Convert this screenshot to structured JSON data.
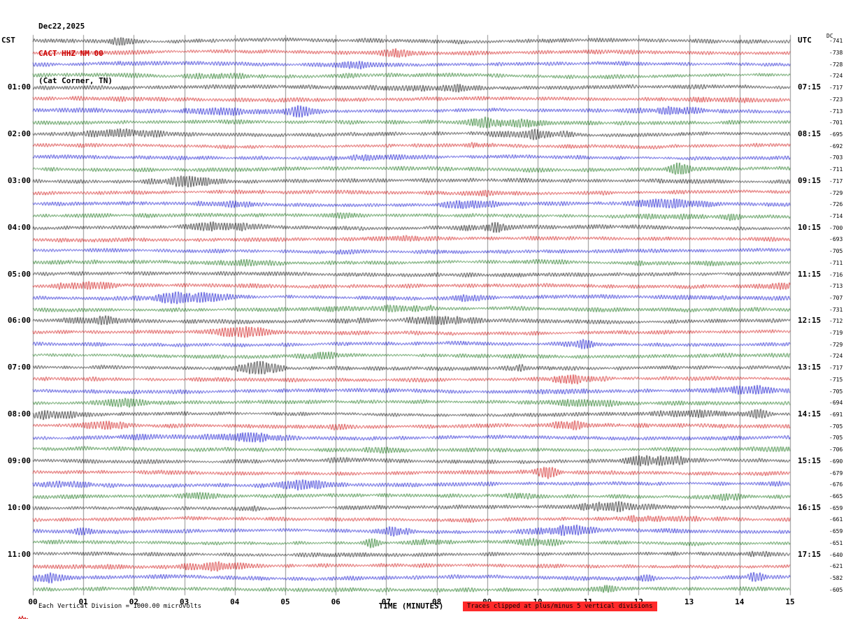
{
  "header": {
    "date": "Dec22,2025",
    "station": "CACT HHZ NM 00",
    "location": "(Cat Corner, TN)"
  },
  "axes": {
    "left_tz": "CST",
    "right_tz": "UTC",
    "dc_header": "DC",
    "x_title": "TIME (MINUTES)",
    "x_ticks": [
      "00",
      "01",
      "02",
      "03",
      "04",
      "05",
      "06",
      "07",
      "08",
      "09",
      "10",
      "11",
      "12",
      "13",
      "14",
      "15"
    ]
  },
  "footer": {
    "left": "Each Vertical Division = 1000.00 microvolts",
    "right": "Traces clipped at plus/minus 5 vertical divisions"
  },
  "chart_data": {
    "type": "line",
    "subtype": "helicorder-seismogram",
    "title": "CACT HHZ NM 00 (Cat Corner, TN) Dec22,2025",
    "xlabel": "TIME (MINUTES)",
    "x_range_minutes": [
      0,
      15
    ],
    "minutes_per_row": 15,
    "rows_count": 48,
    "grid": true,
    "trace_colors": [
      "#000000",
      "#cc0000",
      "#0000cc",
      "#006600"
    ],
    "clip_note": "Traces clipped at plus/minus 5 vertical divisions",
    "vertical_division_microvolts": 1000.0,
    "rows": [
      {
        "cst": "",
        "utc": "",
        "dc": -741
      },
      {
        "cst": "",
        "utc": "",
        "dc": -738
      },
      {
        "cst": "",
        "utc": "",
        "dc": -728
      },
      {
        "cst": "",
        "utc": "",
        "dc": -724
      },
      {
        "cst": "01:00",
        "utc": "07:15",
        "dc": -717
      },
      {
        "cst": "",
        "utc": "",
        "dc": -723
      },
      {
        "cst": "",
        "utc": "",
        "dc": -713
      },
      {
        "cst": "",
        "utc": "",
        "dc": -701
      },
      {
        "cst": "02:00",
        "utc": "08:15",
        "dc": -695
      },
      {
        "cst": "",
        "utc": "",
        "dc": -692
      },
      {
        "cst": "",
        "utc": "",
        "dc": -703
      },
      {
        "cst": "",
        "utc": "",
        "dc": -711
      },
      {
        "cst": "03:00",
        "utc": "09:15",
        "dc": -717
      },
      {
        "cst": "",
        "utc": "",
        "dc": -729
      },
      {
        "cst": "",
        "utc": "",
        "dc": -726
      },
      {
        "cst": "",
        "utc": "",
        "dc": -714
      },
      {
        "cst": "04:00",
        "utc": "10:15",
        "dc": -700
      },
      {
        "cst": "",
        "utc": "",
        "dc": -693
      },
      {
        "cst": "",
        "utc": "",
        "dc": -705
      },
      {
        "cst": "",
        "utc": "",
        "dc": -711
      },
      {
        "cst": "05:00",
        "utc": "11:15",
        "dc": -716
      },
      {
        "cst": "",
        "utc": "",
        "dc": -713
      },
      {
        "cst": "",
        "utc": "",
        "dc": -707
      },
      {
        "cst": "",
        "utc": "",
        "dc": -731
      },
      {
        "cst": "06:00",
        "utc": "12:15",
        "dc": -712
      },
      {
        "cst": "",
        "utc": "",
        "dc": -719
      },
      {
        "cst": "",
        "utc": "",
        "dc": -729
      },
      {
        "cst": "",
        "utc": "",
        "dc": -724
      },
      {
        "cst": "07:00",
        "utc": "13:15",
        "dc": -717
      },
      {
        "cst": "",
        "utc": "",
        "dc": -715
      },
      {
        "cst": "",
        "utc": "",
        "dc": -705
      },
      {
        "cst": "",
        "utc": "",
        "dc": -694
      },
      {
        "cst": "08:00",
        "utc": "14:15",
        "dc": -691
      },
      {
        "cst": "",
        "utc": "",
        "dc": -705
      },
      {
        "cst": "",
        "utc": "",
        "dc": -705
      },
      {
        "cst": "",
        "utc": "",
        "dc": -706
      },
      {
        "cst": "09:00",
        "utc": "15:15",
        "dc": -690
      },
      {
        "cst": "",
        "utc": "",
        "dc": -679
      },
      {
        "cst": "",
        "utc": "",
        "dc": -676
      },
      {
        "cst": "",
        "utc": "",
        "dc": -665
      },
      {
        "cst": "10:00",
        "utc": "16:15",
        "dc": -659
      },
      {
        "cst": "",
        "utc": "",
        "dc": -661
      },
      {
        "cst": "",
        "utc": "",
        "dc": -659
      },
      {
        "cst": "",
        "utc": "",
        "dc": -651
      },
      {
        "cst": "11:00",
        "utc": "17:15",
        "dc": -640
      },
      {
        "cst": "",
        "utc": "",
        "dc": -621
      },
      {
        "cst": "",
        "utc": "",
        "dc": -582
      },
      {
        "cst": "",
        "utc": "",
        "dc": -605
      }
    ],
    "waveform_note": "Continuous seismic noise traces; amplitudes not numerically readable from image, rendered as band-limited noise with occasional bursts."
  }
}
